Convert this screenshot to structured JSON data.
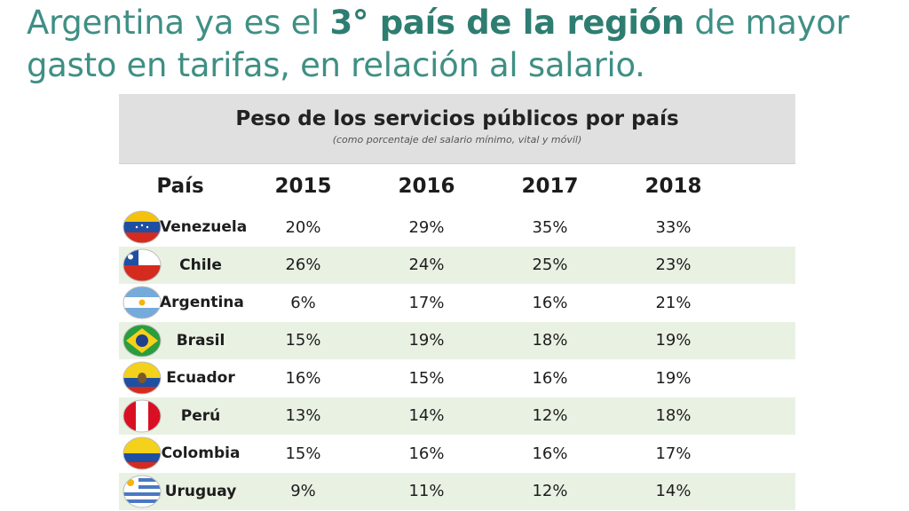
{
  "headline": {
    "part1": "Argentina ya es el ",
    "bold": "3° país de la región",
    "part2": " de mayor gasto en tarifas, en relación al salario."
  },
  "chart_data": {
    "type": "table",
    "title": "Peso de los servicios públicos por país",
    "subtitle": "(como porcentaje del salario mínimo, vital y móvil)",
    "columns": [
      "País",
      "2015",
      "2016",
      "2017",
      "2018"
    ],
    "rows": [
      {
        "country": "Venezuela",
        "flag": "venezuela-flag-icon",
        "values": [
          "20%",
          "29%",
          "35%",
          "33%"
        ]
      },
      {
        "country": "Chile",
        "flag": "chile-flag-icon",
        "values": [
          "26%",
          "24%",
          "25%",
          "23%"
        ]
      },
      {
        "country": "Argentina",
        "flag": "argentina-flag-icon",
        "values": [
          "6%",
          "17%",
          "16%",
          "21%"
        ]
      },
      {
        "country": "Brasil",
        "flag": "brasil-flag-icon",
        "values": [
          "15%",
          "19%",
          "18%",
          "19%"
        ]
      },
      {
        "country": "Ecuador",
        "flag": "ecuador-flag-icon",
        "values": [
          "16%",
          "15%",
          "16%",
          "19%"
        ]
      },
      {
        "country": "Perú",
        "flag": "peru-flag-icon",
        "values": [
          "13%",
          "14%",
          "12%",
          "18%"
        ]
      },
      {
        "country": "Colombia",
        "flag": "colombia-flag-icon",
        "values": [
          "15%",
          "16%",
          "16%",
          "17%"
        ]
      },
      {
        "country": "Uruguay",
        "flag": "uruguay-flag-icon",
        "values": [
          "9%",
          "11%",
          "12%",
          "14%"
        ]
      }
    ]
  },
  "colors": {
    "headline": "#3f8f84",
    "header_bg": "#e0e0e0",
    "alt_row_bg": "#e9f1e3"
  }
}
